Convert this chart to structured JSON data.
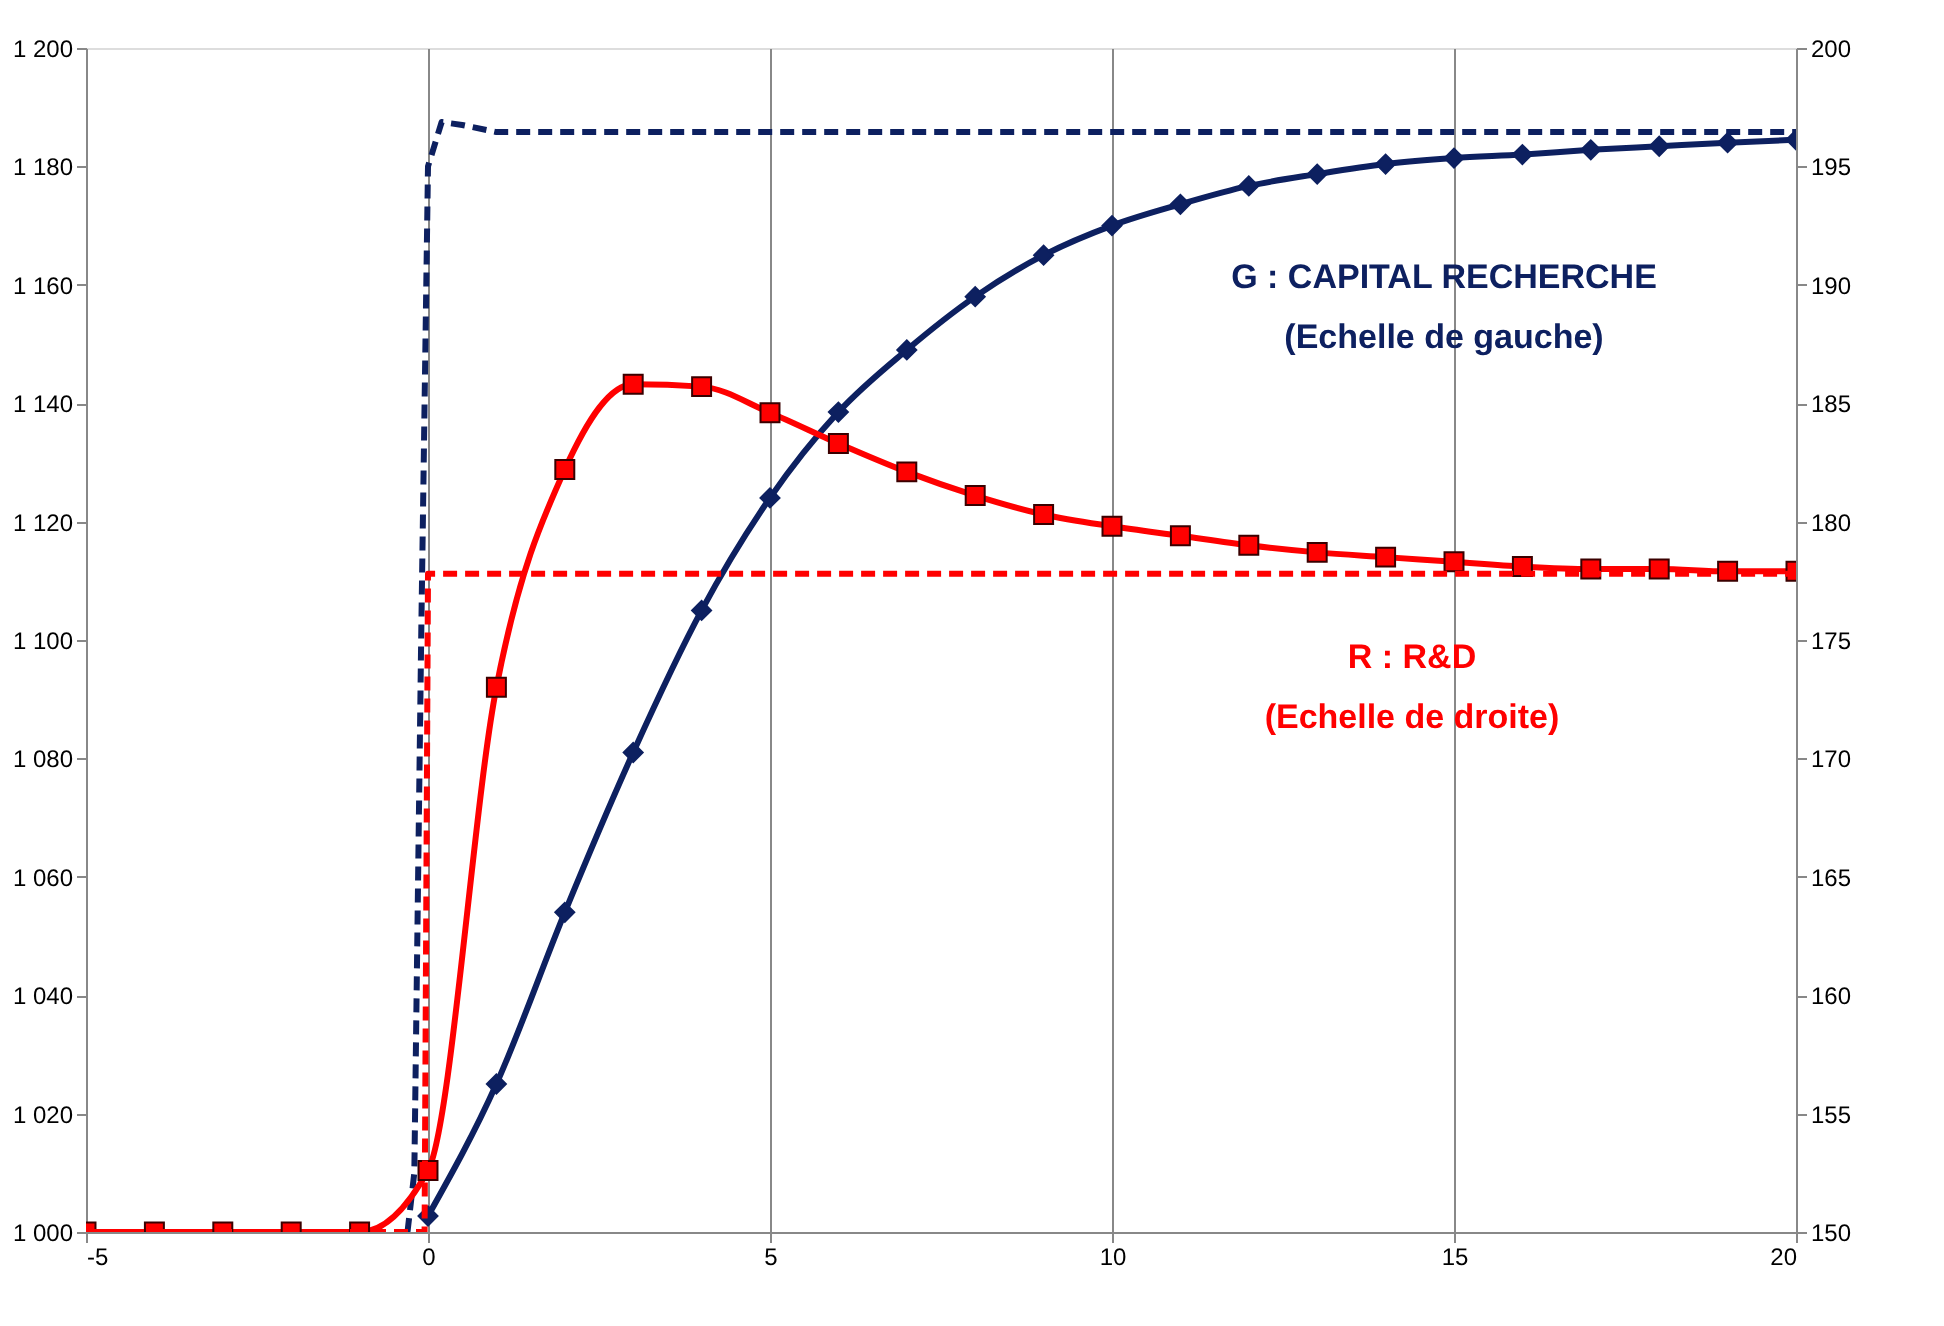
{
  "chart_data": {
    "type": "line",
    "xlim": [
      -5,
      20
    ],
    "xticks": [
      -5,
      0,
      5,
      10,
      15,
      20
    ],
    "ylim": [
      1000,
      1200
    ],
    "yticks": [
      {
        "value": 1000,
        "label": "1 000"
      },
      {
        "value": 1020,
        "label": "1 020"
      },
      {
        "value": 1040,
        "label": "1 040"
      },
      {
        "value": 1060,
        "label": "1 060"
      },
      {
        "value": 1080,
        "label": "1 080"
      },
      {
        "value": 1100,
        "label": "1 100"
      },
      {
        "value": 1120,
        "label": "1 120"
      },
      {
        "value": 1140,
        "label": "1 140"
      },
      {
        "value": 1160,
        "label": "1 160"
      },
      {
        "value": 1180,
        "label": "1 180"
      },
      {
        "value": 1200,
        "label": "1 200"
      }
    ],
    "y2lim": [
      150,
      200
    ],
    "y2ticks": [
      150,
      155,
      160,
      165,
      170,
      175,
      180,
      185,
      190,
      195,
      200
    ],
    "grid": "x",
    "series": [
      {
        "color": "#0d2060",
        "marker": "diamond",
        "line_style": "solid",
        "x": [
          0,
          1,
          2,
          3,
          4,
          5,
          6,
          7,
          8,
          9,
          10,
          11,
          12,
          13,
          14,
          15,
          16,
          17,
          18,
          19,
          20
        ],
        "values": [
          1002.7,
          1025,
          1054,
          1081,
          1105,
          1124,
          1138.5,
          1149,
          1158,
          1165,
          1170,
          1173.6,
          1176.7,
          1178.7,
          1180.4,
          1181.4,
          1182,
          1182.8,
          1183.4,
          1184,
          1184.5
        ]
      },
      {
        "color": "#ff0000",
        "marker": "square",
        "line_style": "solid",
        "axis": "y2",
        "x": [
          -5,
          -4,
          -3,
          -2,
          -1,
          0,
          1,
          2,
          3,
          4,
          5,
          6,
          7,
          8,
          9,
          10,
          11,
          12,
          13,
          14,
          15,
          16,
          17,
          18,
          19,
          20
        ],
        "values": [
          150,
          150,
          150,
          150,
          150,
          152.6,
          173,
          182.2,
          185.8,
          185.7,
          184.6,
          183.3,
          182.1,
          181.1,
          180.3,
          179.8,
          179.4,
          179,
          178.7,
          178.5,
          178.3,
          178.1,
          178,
          178,
          177.9,
          177.9
        ]
      },
      {
        "color": "#0d2060",
        "marker": "none",
        "line_style": "dashed",
        "x": [
          -0.3,
          -0.2,
          -0.1,
          0,
          0.2,
          0.5,
          1,
          20
        ],
        "values": [
          1000,
          1010,
          1100,
          1180,
          1187.5,
          1187,
          1185.8,
          1185.8
        ]
      },
      {
        "color": "#ff0000",
        "marker": "none",
        "line_style": "dashed",
        "axis": "y2",
        "x": [
          -5,
          -0.05,
          0,
          20
        ],
        "values": [
          150,
          150,
          177.8,
          177.8
        ]
      }
    ],
    "annotations": [
      "G : CAPITAL RECHERCHE\n(Echelle de gauche)",
      "R : R&D\n(Echelle de droite)"
    ]
  }
}
